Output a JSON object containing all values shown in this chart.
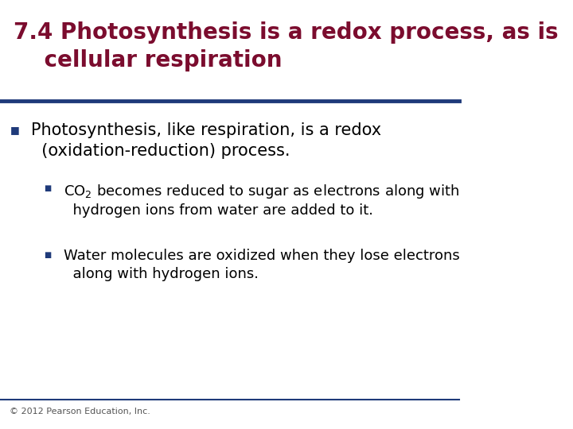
{
  "title_line1": "7.4 Photosynthesis is a redox process, as is",
  "title_line2": "    cellular respiration",
  "title_color": "#7B0C2E",
  "title_fontsize": 20,
  "rule_color": "#1F3A7A",
  "bg_color": "#FFFFFF",
  "bullet1_text_line1": "Photosynthesis, like respiration, is a redox",
  "bullet1_text_line2": "(oxidation-reduction) process.",
  "bullet2_text_line1": "CO$_2$ becomes reduced to sugar as electrons along with",
  "bullet2_text_line2": "hydrogen ions from water are added to it.",
  "bullet3_text_line1": "Water molecules are oxidized when they lose electrons",
  "bullet3_text_line2": "along with hydrogen ions.",
  "footer_text": "© 2012 Pearson Education, Inc.",
  "body_fontsize": 15,
  "sub_fontsize": 13,
  "footer_fontsize": 8,
  "bullet_color": "#1F3A7A",
  "body_text_color": "#000000"
}
